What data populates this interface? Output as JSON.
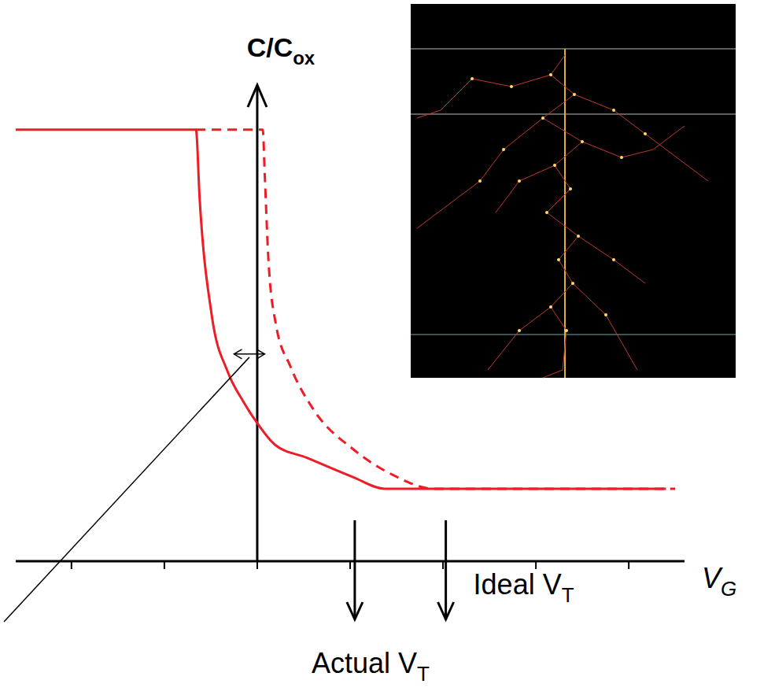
{
  "chart_data": {
    "type": "line",
    "y_label": [
      "C/C",
      "ox"
    ],
    "x_label": [
      "V",
      "G"
    ],
    "xlim": [
      -2.6,
      4.6
    ],
    "xticks": [
      -2,
      -1,
      0,
      1,
      2,
      3,
      4
    ],
    "ylim": [
      0,
      1.1
    ],
    "yticks": [],
    "tick_labels": false,
    "grid": false,
    "series": [
      {
        "color": "#ee1c24",
        "line_style": "solid",
        "x": [
          -2.6,
          -0.66,
          -0.62,
          -0.49,
          -0.32,
          -0.15,
          0,
          0.19,
          0.53,
          1.03,
          1.37,
          4.4
        ],
        "values": [
          1,
          1,
          0.84,
          0.57,
          0.44,
          0.37,
          0.32,
          0.27,
          0.24,
          0.195,
          0.168,
          0.168
        ]
      },
      {
        "color": "#ee1c24",
        "line_style": "dashed",
        "x": [
          -0.66,
          0.06,
          0.08,
          0.12,
          0.2,
          0.36,
          0.61,
          1.03,
          1.46,
          1.9,
          4.5
        ],
        "values": [
          1,
          1,
          0.9,
          0.7,
          0.55,
          0.45,
          0.35,
          0.26,
          0.2,
          0.168,
          0.168
        ]
      }
    ],
    "annotations": [
      {
        "text": [
          "Ideal V",
          "T"
        ],
        "x": 2.03
      },
      {
        "text": [
          "Actual V",
          "T"
        ],
        "x": 1.05
      }
    ],
    "shift_arrow": {
      "x": [
        -0.25,
        0.08
      ],
      "y": 0.48
    }
  }
}
